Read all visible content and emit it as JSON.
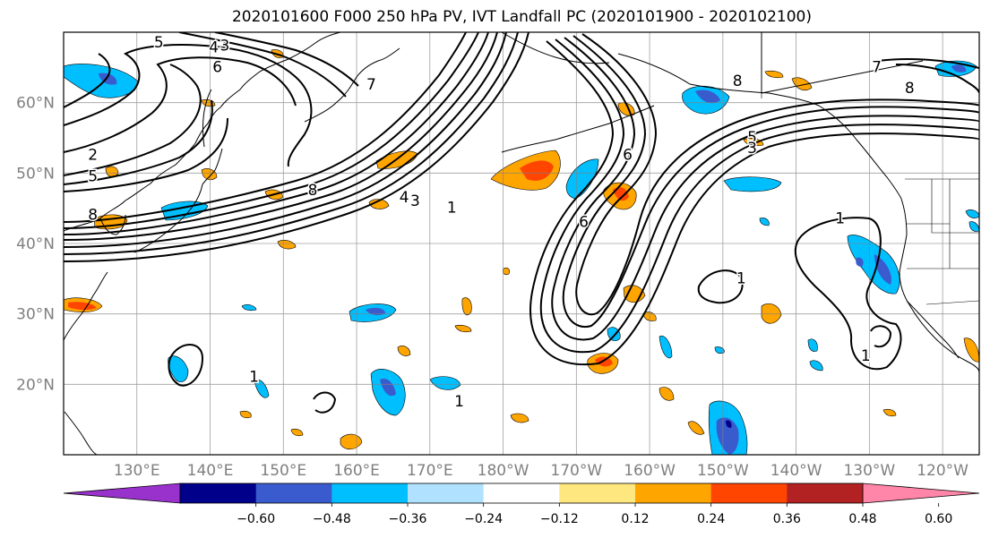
{
  "title": "2020101600 F000 250 hPa PV, IVT Landfall PC (2020101900 - 2020102100)",
  "lat_ticks": [
    "20°N",
    "30°N",
    "40°N",
    "50°N",
    "60°N"
  ],
  "lon_ticks": [
    "130°E",
    "140°E",
    "150°E",
    "160°E",
    "170°E",
    "180°W",
    "170°W",
    "160°W",
    "150°W",
    "140°W",
    "130°W",
    "120°W"
  ],
  "colorbar": {
    "ticks": [
      "−0.60",
      "−0.48",
      "−0.36",
      "−0.24",
      "−0.12",
      "0.12",
      "0.24",
      "0.36",
      "0.48",
      "0.60"
    ],
    "colors": [
      "#9932CC",
      "#00008B",
      "#3A5BCD",
      "#00BFFF",
      "#B0E2FF",
      "#FFFFFF",
      "#FFE77F",
      "#FFA500",
      "#FF4500",
      "#B22222",
      "#FF86A8"
    ]
  },
  "contour_labels": [
    {
      "text": "5",
      "lon": 133,
      "lat": 68.5
    },
    {
      "text": "4",
      "lon": 140.5,
      "lat": 67.8
    },
    {
      "text": "3",
      "lon": 142,
      "lat": 68
    },
    {
      "text": "6",
      "lon": 141,
      "lat": 65
    },
    {
      "text": "7",
      "lon": 162,
      "lat": 62.5
    },
    {
      "text": "2",
      "lon": 124,
      "lat": 52.5
    },
    {
      "text": "5",
      "lon": 124,
      "lat": 49.5
    },
    {
      "text": "8",
      "lon": 124,
      "lat": 44
    },
    {
      "text": "8",
      "lon": 154,
      "lat": 47.5
    },
    {
      "text": "4",
      "lon": 166.5,
      "lat": 46.5
    },
    {
      "text": "3",
      "lon": 168,
      "lat": 46
    },
    {
      "text": "1",
      "lon": 173,
      "lat": 45
    },
    {
      "text": "6",
      "lon": 197,
      "lat": 52.5
    },
    {
      "text": "8",
      "lon": 212,
      "lat": 63
    },
    {
      "text": "5",
      "lon": 214,
      "lat": 55
    },
    {
      "text": "3",
      "lon": 214,
      "lat": 53.5
    },
    {
      "text": "6",
      "lon": 191,
      "lat": 43
    },
    {
      "text": "1",
      "lon": 212.5,
      "lat": 35
    },
    {
      "text": "1",
      "lon": 226,
      "lat": 43.5
    },
    {
      "text": "1",
      "lon": 146,
      "lat": 21
    },
    {
      "text": "1",
      "lon": 174,
      "lat": 17.5
    },
    {
      "text": "1",
      "lon": 229.5,
      "lat": 24
    },
    {
      "text": "7",
      "lon": 231,
      "lat": 65
    },
    {
      "text": "8",
      "lon": 235.5,
      "lat": 62
    }
  ]
}
